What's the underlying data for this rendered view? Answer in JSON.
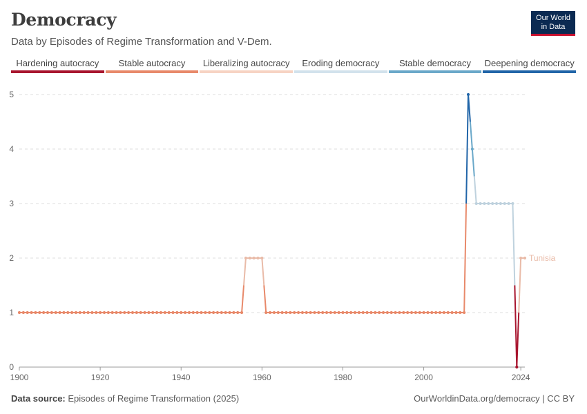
{
  "header": {
    "title": "Democracy",
    "subtitle": "Data by Episodes of Regime Transformation and V-Dem.",
    "logo_line1": "Our World",
    "logo_line2": "in Data"
  },
  "legend": [
    {
      "label": "Hardening autocracy",
      "color": "#a8152e"
    },
    {
      "label": "Stable autocracy",
      "color": "#e8896a"
    },
    {
      "label": "Liberalizing autocracy",
      "color": "#f7d3c3"
    },
    {
      "label": "Eroding democracy",
      "color": "#d2e2ec"
    },
    {
      "label": "Stable democracy",
      "color": "#6aa8c9"
    },
    {
      "label": "Deepening democracy",
      "color": "#2165a8"
    }
  ],
  "footer": {
    "source_label": "Data source:",
    "source_text": "Episodes of Regime Transformation (2025)",
    "credit": "OurWorldinData.org/democracy | CC BY"
  },
  "chart_data": {
    "type": "line",
    "series": [
      {
        "name": "Tunisia",
        "start_year": 1900,
        "values": [
          1,
          1,
          1,
          1,
          1,
          1,
          1,
          1,
          1,
          1,
          1,
          1,
          1,
          1,
          1,
          1,
          1,
          1,
          1,
          1,
          1,
          1,
          1,
          1,
          1,
          1,
          1,
          1,
          1,
          1,
          1,
          1,
          1,
          1,
          1,
          1,
          1,
          1,
          1,
          1,
          1,
          1,
          1,
          1,
          1,
          1,
          1,
          1,
          1,
          1,
          1,
          1,
          1,
          1,
          1,
          1,
          2,
          2,
          2,
          2,
          2,
          1,
          1,
          1,
          1,
          1,
          1,
          1,
          1,
          1,
          1,
          1,
          1,
          1,
          1,
          1,
          1,
          1,
          1,
          1,
          1,
          1,
          1,
          1,
          1,
          1,
          1,
          1,
          1,
          1,
          1,
          1,
          1,
          1,
          1,
          1,
          1,
          1,
          1,
          1,
          1,
          1,
          1,
          1,
          1,
          1,
          1,
          1,
          1,
          1,
          1,
          5,
          4,
          3,
          3,
          3,
          3,
          3,
          3,
          3,
          3,
          3,
          3,
          0,
          2,
          2
        ]
      }
    ],
    "xlim": [
      1900,
      2025
    ],
    "ylim": [
      0,
      5
    ],
    "x_ticks": [
      1900,
      1920,
      1940,
      1960,
      1980,
      2000,
      2024
    ],
    "y_ticks": [
      0,
      1,
      2,
      3,
      4,
      5
    ],
    "category_colors": {
      "0": "#a8152e",
      "1": "#e8896a",
      "2": "#e9bba8",
      "3": "#bfd2de",
      "4": "#6aa8c9",
      "5": "#2165a8"
    },
    "grid": true
  }
}
